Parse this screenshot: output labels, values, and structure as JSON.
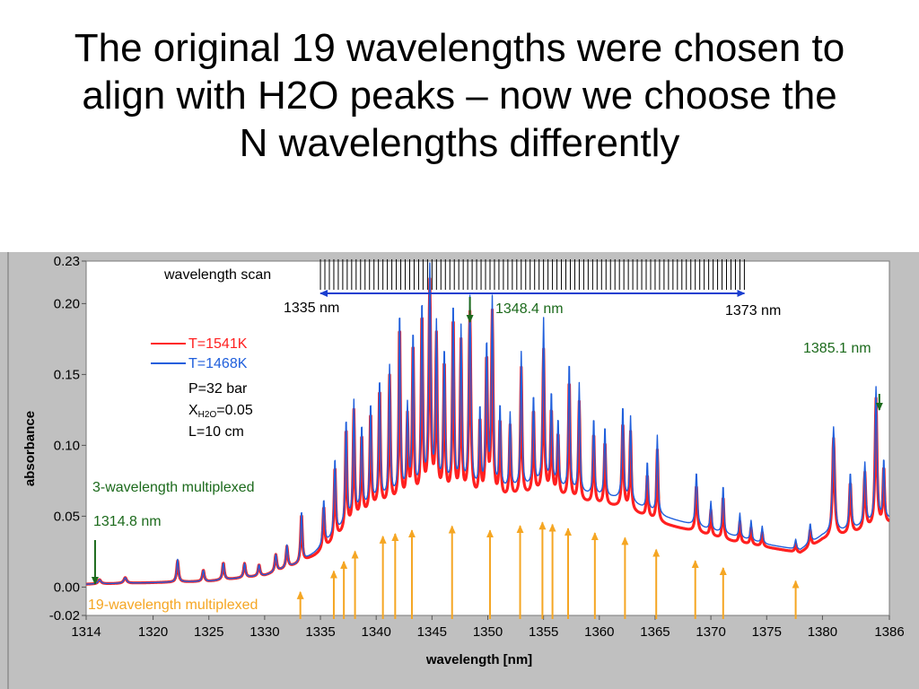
{
  "slide": {
    "title_lines": [
      "The original 19 wavelengths were chosen to",
      "align with H2O peaks – now we choose the",
      "N wavelengths differently"
    ]
  },
  "chart_data": {
    "type": "line",
    "title": "",
    "xlabel": "wavelength [nm]",
    "ylabel": "absorbance",
    "xlim": [
      1314,
      1386
    ],
    "ylim": [
      -0.02,
      0.23
    ],
    "x_ticks": [
      {
        "value": 1314,
        "label": "1314"
      },
      {
        "value": 1320,
        "label": "1320"
      },
      {
        "value": 1325,
        "label": "1325"
      },
      {
        "value": 1330,
        "label": "1330"
      },
      {
        "value": 1335,
        "label": "1335"
      },
      {
        "value": 1340,
        "label": "1340"
      },
      {
        "value": 1345,
        "label": "1345"
      },
      {
        "value": 1350,
        "label": "1350"
      },
      {
        "value": 1355,
        "label": "1355"
      },
      {
        "value": 1360,
        "label": "1360"
      },
      {
        "value": 1365,
        "label": "1365"
      },
      {
        "value": 1370,
        "label": "1370"
      },
      {
        "value": 1375,
        "label": "1375"
      },
      {
        "value": 1380,
        "label": "1380"
      },
      {
        "value": 1386,
        "label": "1386"
      }
    ],
    "y_ticks": [
      {
        "value": -0.02,
        "label": "-0.02"
      },
      {
        "value": 0.0,
        "label": "0.00"
      },
      {
        "value": 0.05,
        "label": "0.05"
      },
      {
        "value": 0.1,
        "label": "0.10"
      },
      {
        "value": 0.15,
        "label": "0.15"
      },
      {
        "value": 0.2,
        "label": "0.20"
      },
      {
        "value": 0.23,
        "label": "0.23"
      }
    ],
    "grid": false,
    "legend": {
      "placement": "upper-left",
      "entries": [
        {
          "label": "T=1541K",
          "color": "#ff2020"
        },
        {
          "label": "T=1468K",
          "color": "#1f5fdc"
        }
      ]
    },
    "conditions": {
      "pressure": "P=32 bar",
      "x_prefix": "X",
      "x_subscript": "H2O",
      "x_value": "=0.05",
      "length": "L=10 cm"
    },
    "series": [
      {
        "name": "T=1541K",
        "color": "#ff2020",
        "background": [
          [
            1314,
            0.002
          ],
          [
            1325,
            0.004
          ],
          [
            1330,
            0.008
          ],
          [
            1333,
            0.016
          ],
          [
            1334.5,
            0.022
          ],
          [
            1336,
            0.03
          ],
          [
            1338,
            0.045
          ],
          [
            1340,
            0.055
          ],
          [
            1343,
            0.06
          ],
          [
            1346,
            0.064
          ],
          [
            1350,
            0.06
          ],
          [
            1355,
            0.066
          ],
          [
            1358,
            0.06
          ],
          [
            1362,
            0.056
          ],
          [
            1366,
            0.044
          ],
          [
            1370,
            0.036
          ],
          [
            1372,
            0.032
          ],
          [
            1375,
            0.028
          ],
          [
            1378,
            0.024
          ],
          [
            1380,
            0.033
          ],
          [
            1383,
            0.038
          ],
          [
            1386,
            0.045
          ]
        ],
        "peaks": [
          [
            1315.2,
            0.003,
            0.15
          ],
          [
            1317.5,
            0.004,
            0.15
          ],
          [
            1322.2,
            0.015,
            0.1
          ],
          [
            1324.5,
            0.008,
            0.1
          ],
          [
            1326.3,
            0.012,
            0.1
          ],
          [
            1328.2,
            0.01,
            0.1
          ],
          [
            1329.5,
            0.008,
            0.1
          ],
          [
            1331,
            0.012,
            0.1
          ],
          [
            1332,
            0.015,
            0.1
          ],
          [
            1333.3,
            0.034,
            0.09
          ],
          [
            1335.3,
            0.03,
            0.09
          ],
          [
            1336.3,
            0.052,
            0.09
          ],
          [
            1337.3,
            0.072,
            0.08
          ],
          [
            1338,
            0.078,
            0.08
          ],
          [
            1338.7,
            0.058,
            0.08
          ],
          [
            1339.5,
            0.07,
            0.08
          ],
          [
            1340.3,
            0.084,
            0.08
          ],
          [
            1341.2,
            0.09,
            0.08
          ],
          [
            1342.1,
            0.126,
            0.08
          ],
          [
            1342.8,
            0.058,
            0.08
          ],
          [
            1343.3,
            0.11,
            0.08
          ],
          [
            1344.1,
            0.13,
            0.08
          ],
          [
            1344.8,
            0.15,
            0.1
          ],
          [
            1345.4,
            0.11,
            0.08
          ],
          [
            1346.1,
            0.094,
            0.08
          ],
          [
            1346.9,
            0.127,
            0.08
          ],
          [
            1347.6,
            0.108,
            0.08
          ],
          [
            1348.4,
            0.13,
            0.1
          ],
          [
            1349.3,
            0.055,
            0.08
          ],
          [
            1349.9,
            0.1,
            0.09
          ],
          [
            1350.4,
            0.13,
            0.09
          ],
          [
            1351.1,
            0.055,
            0.08
          ],
          [
            1352,
            0.05,
            0.08
          ],
          [
            1353,
            0.09,
            0.08
          ],
          [
            1354.1,
            0.06,
            0.08
          ],
          [
            1355,
            0.1,
            0.09
          ],
          [
            1355.7,
            0.06,
            0.08
          ],
          [
            1356.3,
            0.044,
            0.08
          ],
          [
            1357.3,
            0.085,
            0.08
          ],
          [
            1358.2,
            0.07,
            0.08
          ],
          [
            1359.5,
            0.05,
            0.08
          ],
          [
            1360.5,
            0.045,
            0.08
          ],
          [
            1362.1,
            0.06,
            0.09
          ],
          [
            1362.8,
            0.055,
            0.08
          ],
          [
            1364.3,
            0.03,
            0.08
          ],
          [
            1365.2,
            0.05,
            0.08
          ],
          [
            1368.7,
            0.033,
            0.1
          ],
          [
            1370,
            0.018,
            0.08
          ],
          [
            1371.1,
            0.03,
            0.08
          ],
          [
            1372.6,
            0.015,
            0.08
          ],
          [
            1373.6,
            0.012,
            0.08
          ],
          [
            1374.6,
            0.01,
            0.08
          ],
          [
            1377.6,
            0.006,
            0.08
          ],
          [
            1378.9,
            0.012,
            0.1
          ],
          [
            1381,
            0.07,
            0.12
          ],
          [
            1382.5,
            0.036,
            0.1
          ],
          [
            1383.8,
            0.04,
            0.1
          ],
          [
            1384.8,
            0.09,
            0.1
          ],
          [
            1385.5,
            0.04,
            0.08
          ]
        ]
      },
      {
        "name": "T=1468K",
        "color": "#1f5fdc",
        "background": [
          [
            1314,
            0.002
          ],
          [
            1325,
            0.004
          ],
          [
            1330,
            0.008
          ],
          [
            1333,
            0.016
          ],
          [
            1334.5,
            0.024
          ],
          [
            1336,
            0.034
          ],
          [
            1338,
            0.05
          ],
          [
            1340,
            0.06
          ],
          [
            1343,
            0.066
          ],
          [
            1346,
            0.07
          ],
          [
            1350,
            0.066
          ],
          [
            1355,
            0.072
          ],
          [
            1358,
            0.066
          ],
          [
            1362,
            0.062
          ],
          [
            1366,
            0.049
          ],
          [
            1370,
            0.04
          ],
          [
            1372,
            0.036
          ],
          [
            1375,
            0.03
          ],
          [
            1378,
            0.026
          ],
          [
            1380,
            0.036
          ],
          [
            1383,
            0.041
          ],
          [
            1386,
            0.048
          ]
        ],
        "peaks": [
          [
            1315.2,
            0.003,
            0.15
          ],
          [
            1317.5,
            0.004,
            0.15
          ],
          [
            1322.2,
            0.016,
            0.1
          ],
          [
            1324.5,
            0.008,
            0.1
          ],
          [
            1326.3,
            0.012,
            0.1
          ],
          [
            1328.2,
            0.01,
            0.1
          ],
          [
            1329.5,
            0.008,
            0.1
          ],
          [
            1331,
            0.012,
            0.1
          ],
          [
            1332,
            0.016,
            0.1
          ],
          [
            1333.3,
            0.036,
            0.09
          ],
          [
            1335.3,
            0.032,
            0.09
          ],
          [
            1336.3,
            0.054,
            0.09
          ],
          [
            1337.3,
            0.074,
            0.08
          ],
          [
            1338,
            0.08,
            0.08
          ],
          [
            1338.7,
            0.06,
            0.08
          ],
          [
            1339.5,
            0.072,
            0.08
          ],
          [
            1340.3,
            0.086,
            0.08
          ],
          [
            1341.2,
            0.092,
            0.08
          ],
          [
            1342.1,
            0.13,
            0.08
          ],
          [
            1342.8,
            0.06,
            0.08
          ],
          [
            1343.3,
            0.113,
            0.08
          ],
          [
            1344.1,
            0.133,
            0.08
          ],
          [
            1344.8,
            0.155,
            0.1
          ],
          [
            1345.4,
            0.113,
            0.08
          ],
          [
            1346.1,
            0.097,
            0.08
          ],
          [
            1346.9,
            0.131,
            0.08
          ],
          [
            1347.6,
            0.112,
            0.08
          ],
          [
            1348.4,
            0.135,
            0.1
          ],
          [
            1349.3,
            0.058,
            0.08
          ],
          [
            1349.9,
            0.104,
            0.09
          ],
          [
            1350.4,
            0.134,
            0.09
          ],
          [
            1351.1,
            0.06,
            0.08
          ],
          [
            1352,
            0.053,
            0.08
          ],
          [
            1353,
            0.095,
            0.08
          ],
          [
            1354.1,
            0.064,
            0.08
          ],
          [
            1355,
            0.116,
            0.09
          ],
          [
            1355.7,
            0.066,
            0.08
          ],
          [
            1356.3,
            0.048,
            0.08
          ],
          [
            1357.3,
            0.092,
            0.08
          ],
          [
            1358.2,
            0.077,
            0.08
          ],
          [
            1359.5,
            0.055,
            0.08
          ],
          [
            1360.5,
            0.05,
            0.08
          ],
          [
            1362.1,
            0.066,
            0.09
          ],
          [
            1362.8,
            0.06,
            0.08
          ],
          [
            1364.3,
            0.034,
            0.08
          ],
          [
            1365.2,
            0.055,
            0.08
          ],
          [
            1368.7,
            0.038,
            0.1
          ],
          [
            1370,
            0.02,
            0.08
          ],
          [
            1371.1,
            0.034,
            0.08
          ],
          [
            1372.6,
            0.017,
            0.08
          ],
          [
            1373.6,
            0.014,
            0.08
          ],
          [
            1374.6,
            0.012,
            0.08
          ],
          [
            1377.6,
            0.007,
            0.08
          ],
          [
            1378.9,
            0.014,
            0.1
          ],
          [
            1381,
            0.075,
            0.12
          ],
          [
            1382.5,
            0.04,
            0.1
          ],
          [
            1383.8,
            0.044,
            0.1
          ],
          [
            1384.8,
            0.095,
            0.1
          ],
          [
            1385.5,
            0.043,
            0.08
          ]
        ]
      }
    ],
    "scan": {
      "label": "wavelength scan",
      "start": 1335,
      "end": 1373,
      "start_label": "1335 nm",
      "end_label": "1373 nm",
      "color": "#1a3fd0"
    },
    "multiplexed_3": {
      "label": "3-wavelength multiplexed",
      "color": "#1c6a1c",
      "markers": [
        {
          "x": 1314.8,
          "label": "1314.8 nm"
        },
        {
          "x": 1348.4,
          "label": "1348.4 nm"
        },
        {
          "x": 1385.1,
          "label": "1385.1 nm"
        }
      ]
    },
    "multiplexed_19": {
      "label": "19-wavelength multiplexed",
      "color": "#f5a623",
      "positions": [
        1333.2,
        1336.2,
        1337.1,
        1338.1,
        1340.6,
        1341.7,
        1343.2,
        1346.8,
        1350.2,
        1352.9,
        1354.9,
        1355.8,
        1357.2,
        1359.6,
        1362.3,
        1365.1,
        1368.6,
        1371.1,
        1377.6
      ]
    }
  }
}
